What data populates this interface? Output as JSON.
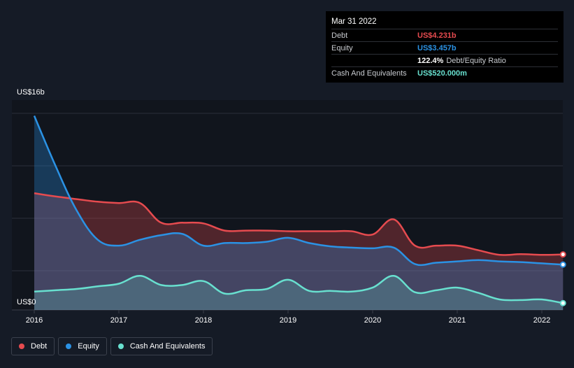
{
  "tooltip": {
    "date": "Mar 31 2022",
    "debt_label": "Debt",
    "debt_value": "US$4.231b",
    "equity_label": "Equity",
    "equity_value": "US$3.457b",
    "ratio_value": "122.4%",
    "ratio_label": "Debt/Equity Ratio",
    "cash_label": "Cash And Equivalents",
    "cash_value": "US$520.000m"
  },
  "legend": {
    "debt": "Debt",
    "equity": "Equity",
    "cash": "Cash And Equivalents"
  },
  "colors": {
    "background": "#151b26",
    "debt": "#e64b4f",
    "equity": "#2b92e4",
    "cash": "#68e0cf"
  },
  "chart_data": {
    "type": "area",
    "ylim": [
      0,
      16
    ],
    "y_ticks": [
      {
        "value": 16,
        "label": "US$16b"
      },
      {
        "value": 0,
        "label": "US$0"
      }
    ],
    "x_ticks": [
      {
        "value": 2016,
        "label": "2016"
      },
      {
        "value": 2017,
        "label": "2017"
      },
      {
        "value": 2018,
        "label": "2018"
      },
      {
        "value": 2019,
        "label": "2019"
      },
      {
        "value": 2020,
        "label": "2020"
      },
      {
        "value": 2021,
        "label": "2021"
      },
      {
        "value": 2022,
        "label": "2022"
      }
    ],
    "xlim": [
      2015.75,
      2022.25
    ],
    "grid": true,
    "legend_position": "bottom-left",
    "series": [
      {
        "name": "Debt",
        "color": "#e64b4f",
        "points": [
          [
            2016.0,
            8.9
          ],
          [
            2016.25,
            8.65
          ],
          [
            2016.5,
            8.45
          ],
          [
            2016.75,
            8.25
          ],
          [
            2017.0,
            8.15
          ],
          [
            2017.25,
            8.15
          ],
          [
            2017.5,
            6.65
          ],
          [
            2017.75,
            6.65
          ],
          [
            2018.0,
            6.6
          ],
          [
            2018.25,
            6.05
          ],
          [
            2018.5,
            6.05
          ],
          [
            2018.75,
            6.05
          ],
          [
            2019.0,
            6.0
          ],
          [
            2019.25,
            6.0
          ],
          [
            2019.5,
            6.0
          ],
          [
            2019.75,
            6.0
          ],
          [
            2020.0,
            5.75
          ],
          [
            2020.25,
            6.9
          ],
          [
            2020.5,
            4.9
          ],
          [
            2020.75,
            4.9
          ],
          [
            2021.0,
            4.9
          ],
          [
            2021.25,
            4.55
          ],
          [
            2021.5,
            4.2
          ],
          [
            2021.75,
            4.25
          ],
          [
            2022.0,
            4.2
          ],
          [
            2022.25,
            4.231
          ]
        ]
      },
      {
        "name": "Equity",
        "color": "#2b92e4",
        "points": [
          [
            2016.0,
            14.8
          ],
          [
            2016.25,
            11.0
          ],
          [
            2016.5,
            7.6
          ],
          [
            2016.75,
            5.35
          ],
          [
            2017.0,
            4.9
          ],
          [
            2017.25,
            5.35
          ],
          [
            2017.5,
            5.7
          ],
          [
            2017.75,
            5.8
          ],
          [
            2018.0,
            4.9
          ],
          [
            2018.25,
            5.1
          ],
          [
            2018.5,
            5.1
          ],
          [
            2018.75,
            5.2
          ],
          [
            2019.0,
            5.5
          ],
          [
            2019.25,
            5.1
          ],
          [
            2019.5,
            4.85
          ],
          [
            2019.75,
            4.75
          ],
          [
            2020.0,
            4.7
          ],
          [
            2020.25,
            4.75
          ],
          [
            2020.5,
            3.5
          ],
          [
            2020.75,
            3.6
          ],
          [
            2021.0,
            3.7
          ],
          [
            2021.25,
            3.8
          ],
          [
            2021.5,
            3.7
          ],
          [
            2021.75,
            3.65
          ],
          [
            2022.0,
            3.55
          ],
          [
            2022.25,
            3.457
          ]
        ]
      },
      {
        "name": "Cash And Equivalents",
        "color": "#68e0cf",
        "points": [
          [
            2016.0,
            1.4
          ],
          [
            2016.25,
            1.5
          ],
          [
            2016.5,
            1.6
          ],
          [
            2016.75,
            1.8
          ],
          [
            2017.0,
            2.0
          ],
          [
            2017.25,
            2.6
          ],
          [
            2017.5,
            1.9
          ],
          [
            2017.75,
            1.9
          ],
          [
            2018.0,
            2.2
          ],
          [
            2018.25,
            1.25
          ],
          [
            2018.5,
            1.5
          ],
          [
            2018.75,
            1.6
          ],
          [
            2019.0,
            2.3
          ],
          [
            2019.25,
            1.45
          ],
          [
            2019.5,
            1.45
          ],
          [
            2019.75,
            1.4
          ],
          [
            2020.0,
            1.7
          ],
          [
            2020.25,
            2.6
          ],
          [
            2020.5,
            1.35
          ],
          [
            2020.75,
            1.5
          ],
          [
            2021.0,
            1.7
          ],
          [
            2021.25,
            1.3
          ],
          [
            2021.5,
            0.8
          ],
          [
            2021.75,
            0.75
          ],
          [
            2022.0,
            0.8
          ],
          [
            2022.25,
            0.52
          ]
        ]
      }
    ]
  }
}
